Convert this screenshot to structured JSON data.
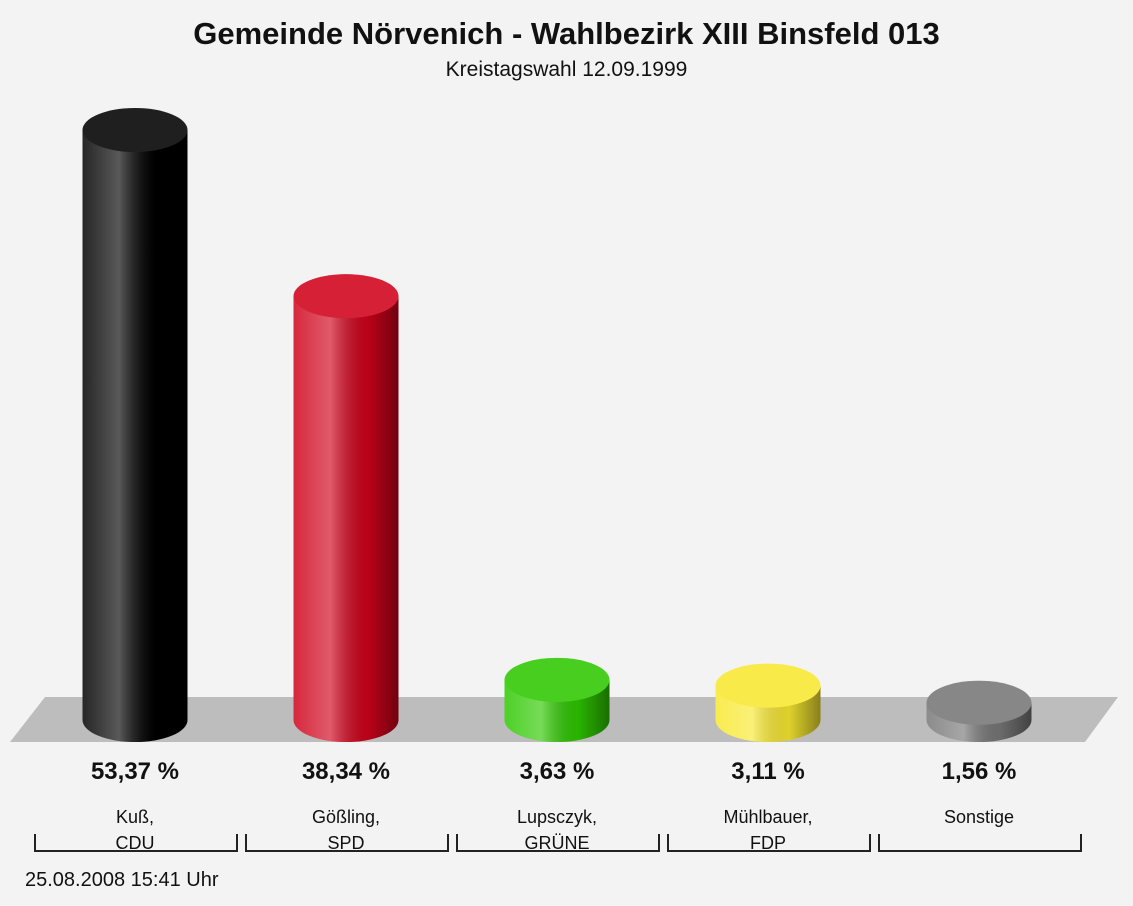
{
  "chart_data": {
    "type": "bar",
    "title": "Gemeinde Nörvenich - Wahlbezirk XIII Binsfeld 013",
    "subtitle": "Kreistagswahl 12.09.1999",
    "categories": [
      "Kuß,\nCDU",
      "Gößling,\nSPD",
      "Lupsczyk,\nGRÜNE",
      "Mühlbauer,\nFDP",
      "Sonstige"
    ],
    "values": [
      53.37,
      38.34,
      3.63,
      3.11,
      1.56
    ],
    "value_labels": [
      "53,37 %",
      "38,34 %",
      "3,63 %",
      "3,11 %",
      "1,56 %"
    ],
    "colors": [
      "#000000",
      "#d0021b",
      "#2ec800",
      "#f8e830",
      "#777777"
    ],
    "footer": "25.08.2008 15:41 Uhr"
  }
}
